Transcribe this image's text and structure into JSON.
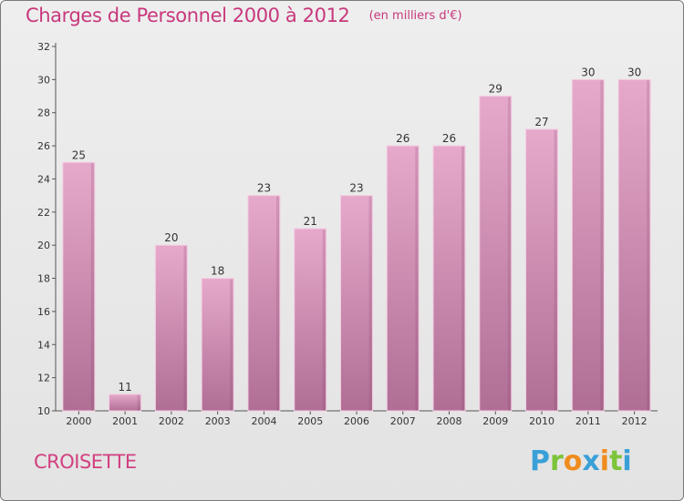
{
  "chart_data": {
    "type": "bar",
    "title": "Charges de Personnel 2000 à 2012",
    "subtitle": "(en milliers d'€)",
    "categories": [
      "2000",
      "2001",
      "2002",
      "2003",
      "2004",
      "2005",
      "2006",
      "2007",
      "2008",
      "2009",
      "2010",
      "2011",
      "2012"
    ],
    "values": [
      25,
      11,
      20,
      18,
      23,
      21,
      23,
      26,
      26,
      29,
      27,
      30,
      30
    ],
    "ylim": [
      10,
      32
    ],
    "yticks": [
      10,
      12,
      14,
      16,
      18,
      20,
      22,
      24,
      26,
      28,
      30,
      32
    ],
    "xlabel": "",
    "ylabel": "",
    "grid": false,
    "bar_color_top": "#e6a9cb",
    "bar_color_bottom": "#b06e95",
    "bar_edge_color": "#f3cde2"
  },
  "footer": {
    "place": "CROISETTE"
  },
  "logo": {
    "text": "Proxiti",
    "letters": [
      {
        "ch": "P",
        "color": "#3aa0d8"
      },
      {
        "ch": "r",
        "color": "#7cc43a"
      },
      {
        "ch": "o",
        "color": "#f08c1e"
      },
      {
        "ch": "x",
        "color": "#3aa0d8"
      },
      {
        "ch": "i",
        "color": "#f08c1e"
      },
      {
        "ch": "t",
        "color": "#7cc43a"
      },
      {
        "ch": "i",
        "color": "#3aa0d8"
      }
    ]
  }
}
